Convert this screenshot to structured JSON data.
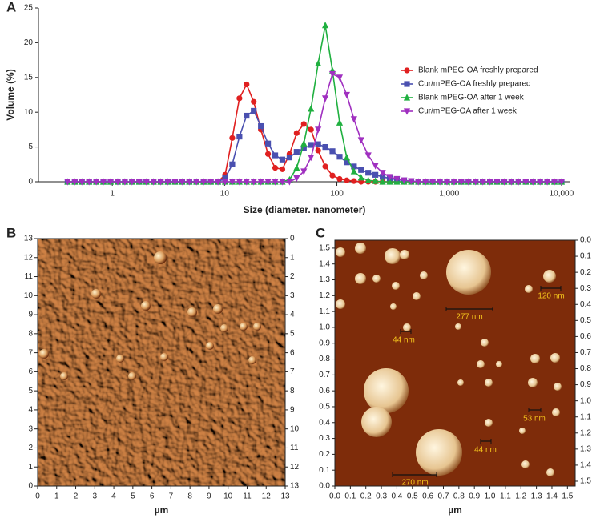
{
  "chart_data": [
    {
      "type": "line",
      "label": "A",
      "xlabel": "Size (diameter. nanometer)",
      "ylabel": "Volume (%)",
      "xscale": "log",
      "xlim": [
        0.22,
        12000
      ],
      "ylim": [
        0,
        25
      ],
      "xticks": [
        1,
        10,
        100,
        {
          "value": 1000,
          "label": "1,000"
        },
        {
          "value": 10000,
          "label": "10,000"
        }
      ],
      "yticks": [
        0,
        5,
        10,
        15,
        20,
        25
      ],
      "legend": "right",
      "x": [
        0.4,
        0.463,
        0.536,
        0.621,
        0.72,
        0.833,
        0.965,
        1.118,
        1.295,
        1.499,
        1.736,
        2.011,
        2.329,
        2.697,
        3.123,
        3.617,
        4.189,
        4.851,
        5.618,
        6.506,
        7.535,
        8.726,
        10.11,
        11.7,
        13.55,
        15.69,
        18.17,
        21.05,
        24.37,
        28.23,
        32.69,
        37.86,
        43.84,
        50.77,
        58.8,
        68.1,
        78.86,
        91.33,
        105.8,
        122.5,
        141.9,
        164.3,
        190.3,
        220.3,
        255.2,
        295.5,
        342.2,
        396.3,
        459,
        531.6,
        615.6,
        712.9,
        825.6,
        956.2,
        1107,
        1282,
        1485,
        1720,
        1992,
        2307,
        2671,
        3094,
        3583,
        4149,
        4805,
        5565,
        6445,
        7464,
        8644,
        10011
      ],
      "series": [
        {
          "name": "Blank mPEG-OA freshly prepared",
          "color": "#e02020",
          "marker": "circle",
          "values": [
            0,
            0,
            0,
            0,
            0,
            0,
            0,
            0,
            0,
            0,
            0,
            0,
            0,
            0,
            0,
            0,
            0,
            0,
            0,
            0,
            0,
            0,
            1,
            6.3,
            12,
            14,
            11.5,
            7.5,
            4,
            2,
            1.8,
            4,
            7,
            8.3,
            7.5,
            4.5,
            2.2,
            0.9,
            0.4,
            0.2,
            0.1,
            0,
            0,
            0,
            0,
            0,
            0,
            0,
            0,
            0,
            0,
            0,
            0,
            0,
            0,
            0,
            0,
            0,
            0,
            0,
            0,
            0,
            0,
            0,
            0,
            0,
            0,
            0,
            0,
            0
          ]
        },
        {
          "name": "Cur/mPEG-OA freshly prepared",
          "color": "#4a50b0",
          "marker": "square",
          "values": [
            0,
            0,
            0,
            0,
            0,
            0,
            0,
            0,
            0,
            0,
            0,
            0,
            0,
            0,
            0,
            0,
            0,
            0,
            0,
            0,
            0,
            0,
            0.5,
            2.5,
            6.5,
            9.5,
            10.2,
            8,
            5.5,
            3.8,
            3.2,
            3.5,
            4.3,
            4.8,
            5.3,
            5.4,
            5,
            4.4,
            3.6,
            2.8,
            2.2,
            1.7,
            1.3,
            1,
            0.7,
            0.5,
            0.3,
            0.2,
            0.1,
            0,
            0,
            0,
            0,
            0,
            0,
            0,
            0,
            0,
            0,
            0,
            0,
            0,
            0,
            0,
            0,
            0,
            0,
            0,
            0,
            0
          ]
        },
        {
          "name": "Blank mPEG-OA after 1 week",
          "color": "#20b040",
          "marker": "triangle-up",
          "values": [
            0,
            0,
            0,
            0,
            0,
            0,
            0,
            0,
            0,
            0,
            0,
            0,
            0,
            0,
            0,
            0,
            0,
            0,
            0,
            0,
            0,
            0,
            0,
            0,
            0,
            0,
            0,
            0,
            0,
            0,
            0,
            0.3,
            2,
            5.5,
            10.5,
            17,
            22.5,
            16,
            8.5,
            3.5,
            1.5,
            0.6,
            0.2,
            0.1,
            0,
            0,
            0,
            0,
            0,
            0,
            0,
            0,
            0,
            0,
            0,
            0,
            0,
            0,
            0,
            0,
            0,
            0,
            0,
            0,
            0,
            0,
            0,
            0,
            0,
            0
          ]
        },
        {
          "name": "Cur/mPEG-OA after 1 week",
          "color": "#a030c0",
          "marker": "triangle-down",
          "values": [
            0,
            0,
            0,
            0,
            0,
            0,
            0,
            0,
            0,
            0,
            0,
            0,
            0,
            0,
            0,
            0,
            0,
            0,
            0,
            0,
            0,
            0,
            0,
            0,
            0,
            0,
            0,
            0,
            0,
            0,
            0,
            0,
            0.5,
            1.5,
            3.5,
            7.5,
            12,
            15.5,
            15,
            12.5,
            9,
            6,
            3.8,
            2.3,
            1.3,
            0.7,
            0.4,
            0.2,
            0.1,
            0,
            0,
            0,
            0,
            0,
            0,
            0,
            0,
            0,
            0,
            0,
            0,
            0,
            0,
            0,
            0,
            0,
            0,
            0,
            0,
            0
          ]
        }
      ]
    },
    {
      "type": "image",
      "label": "B",
      "xlabel": "µm",
      "xlim": [
        0,
        13
      ],
      "ylim": [
        0,
        13
      ],
      "y2lim": [
        13,
        0
      ],
      "xticks": [
        0,
        1,
        2,
        3,
        4,
        5,
        6,
        7,
        8,
        9,
        10,
        11,
        12,
        13
      ],
      "yticks": [
        0,
        1,
        2,
        3,
        4,
        5,
        6,
        7,
        8,
        9,
        10,
        11,
        12,
        13
      ],
      "y2ticks": [
        0,
        1,
        2,
        3,
        4,
        5,
        6,
        7,
        8,
        9,
        10,
        11,
        12,
        13
      ]
    },
    {
      "type": "image",
      "label": "C",
      "xlabel": "µm",
      "xlim": [
        0,
        1.55
      ],
      "ylim": [
        0,
        1.55
      ],
      "y2lim": [
        1.53,
        0
      ],
      "xticks": [
        {
          "value": 0,
          "label": "0.0"
        },
        0.1,
        0.2,
        0.3,
        0.4,
        0.5,
        0.6,
        0.7,
        0.8,
        0.9,
        {
          "value": 1,
          "label": "1.0"
        },
        1.1,
        1.2,
        1.3,
        1.4,
        1.5
      ],
      "yticks": [
        {
          "value": 0,
          "label": "0.0"
        },
        0.1,
        0.2,
        0.3,
        0.4,
        0.5,
        0.6,
        0.7,
        0.8,
        0.9,
        {
          "value": 1,
          "label": "1.0"
        },
        1.1,
        1.2,
        1.3,
        1.4,
        1.5
      ],
      "y2ticks": [
        {
          "value": 0,
          "label": "0.0"
        },
        0.1,
        0.2,
        0.3,
        0.4,
        0.5,
        0.6,
        0.7,
        0.8,
        0.9,
        {
          "value": 1,
          "label": "1.0"
        },
        1.1,
        1.2,
        1.3,
        1.4,
        1.5
      ],
      "annotations": [
        "277 nm",
        "120 nm",
        "44 nm",
        "53 nm",
        "44 nm",
        "270 nm"
      ]
    }
  ]
}
